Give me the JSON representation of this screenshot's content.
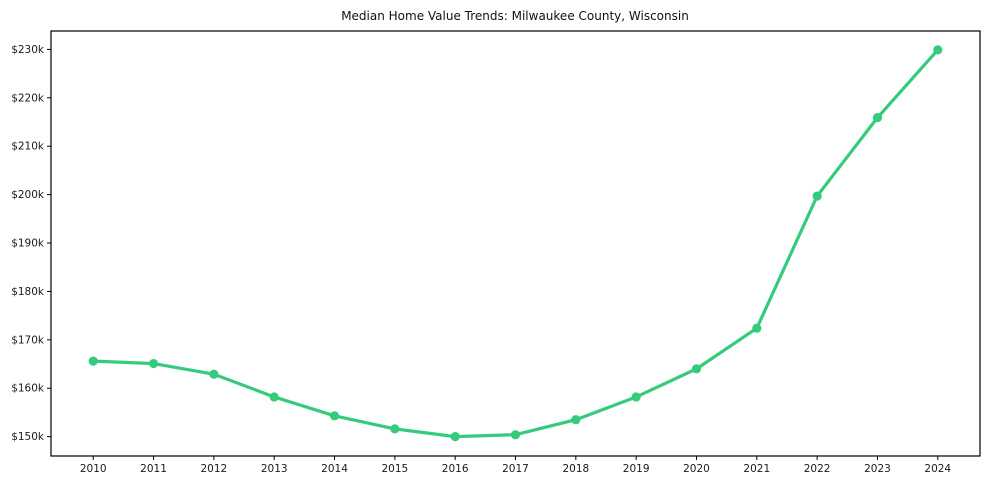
{
  "figure": {
    "background_color": "#ffffff"
  },
  "chart_data": {
    "type": "line",
    "title": "Median Home Value Trends: Milwaukee County, Wisconsin",
    "xlabel": "",
    "ylabel": "",
    "units": "USD thousands",
    "x": [
      2010,
      2011,
      2012,
      2013,
      2014,
      2015,
      2016,
      2017,
      2018,
      2019,
      2020,
      2021,
      2022,
      2023,
      2024
    ],
    "x_tick_labels": [
      "2010",
      "2011",
      "2012",
      "2013",
      "2014",
      "2015",
      "2016",
      "2017",
      "2018",
      "2019",
      "2020",
      "2021",
      "2022",
      "2023",
      "2024"
    ],
    "values": [
      165.6,
      165.1,
      162.9,
      158.2,
      154.3,
      151.6,
      150.0,
      150.4,
      153.5,
      158.2,
      164.0,
      172.4,
      199.7,
      215.9,
      229.9
    ],
    "y_ticks": [
      150,
      160,
      170,
      180,
      190,
      200,
      210,
      220,
      230
    ],
    "y_tick_labels": [
      "$150k",
      "$160k",
      "$170k",
      "$180k",
      "$190k",
      "$200k",
      "$210k",
      "$220k",
      "$230k"
    ],
    "xlim": [
      2009.3,
      2024.7
    ],
    "ylim": [
      146.0,
      233.8
    ],
    "grid": false,
    "legend": "none",
    "marker": "circle",
    "line_color": "#35cb7d",
    "marker_color": "#35cb7d",
    "axis_color": "#000000",
    "tick_text_color": "#1a1a1a",
    "line_width": 3.2,
    "marker_radius": 4.6
  }
}
